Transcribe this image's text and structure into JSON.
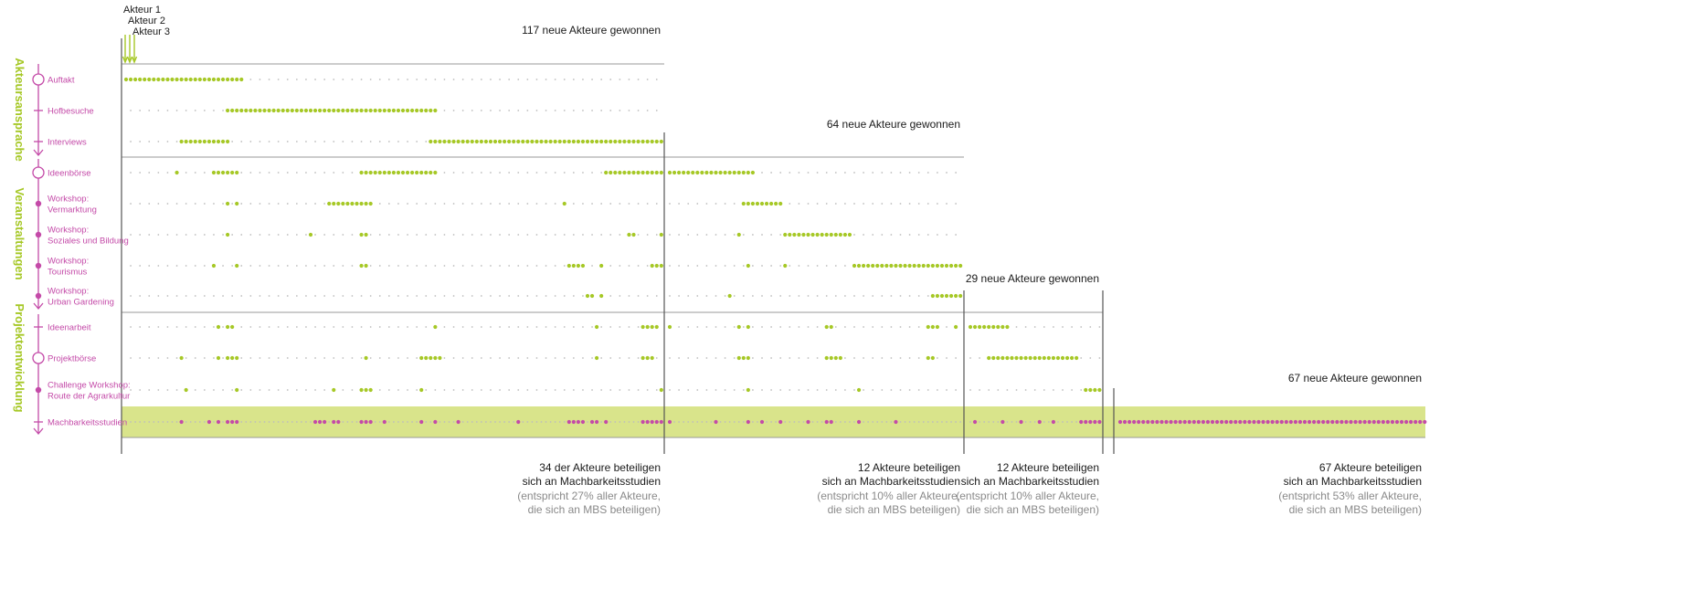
{
  "colors": {
    "green": "#a6c826",
    "magenta": "#c44aa8",
    "band": "#d9e48b",
    "dot_bg": "#bdbdbd",
    "text": "#1a1a1a",
    "gray_text": "#8a8a8a",
    "rule": "#555555"
  },
  "actor_labels": [
    "Akteur 1",
    "Akteur 2",
    "Akteur 3"
  ],
  "phases": [
    {
      "label": "Akteursansprache"
    },
    {
      "label": "Veranstaltungen"
    },
    {
      "label": "Projektentwicklung"
    }
  ],
  "rows": [
    {
      "id": "auftakt",
      "label": [
        "Auftakt"
      ],
      "marker": "circle"
    },
    {
      "id": "hofbesuche",
      "label": [
        "Hofbesuche"
      ],
      "marker": "tick"
    },
    {
      "id": "interviews",
      "label": [
        "Interviews"
      ],
      "marker": "tick"
    },
    {
      "id": "ideenboerse",
      "label": [
        "Ideenbörse"
      ],
      "marker": "circle"
    },
    {
      "id": "ws-vermarktung",
      "label": [
        "Workshop:",
        "Vermarktung"
      ],
      "marker": "dot"
    },
    {
      "id": "ws-soziales",
      "label": [
        "Workshop:",
        "Soziales und Bildung"
      ],
      "marker": "dot"
    },
    {
      "id": "ws-tourismus",
      "label": [
        "Workshop:",
        "Tourismus"
      ],
      "marker": "dot"
    },
    {
      "id": "ws-urban",
      "label": [
        "Workshop:",
        "Urban Gardening"
      ],
      "marker": "dot"
    },
    {
      "id": "ideenarbeit",
      "label": [
        "Ideenarbeit"
      ],
      "marker": "tick"
    },
    {
      "id": "projektboerse",
      "label": [
        "Projektbörse"
      ],
      "marker": "circle"
    },
    {
      "id": "challenge",
      "label": [
        "Challenge Workshop:",
        "Route der Agrarkultur"
      ],
      "marker": "dot"
    },
    {
      "id": "mbs",
      "label": [
        "Machbarkeitsstudien"
      ],
      "marker": "tick"
    }
  ],
  "chart_data": {
    "type": "scatter",
    "x_unit": "actor number (in order of acquisition)",
    "groups": [
      {
        "header": "117 neue Akteure gewonnen",
        "footer": [
          "34 der Akteure beteiligen",
          "sich an Machbarkeitsstudien"
        ],
        "note": [
          "(entspricht 27% aller Akteure,",
          "die sich an MBS beteiligen)"
        ],
        "count": 117,
        "last_row": 2
      },
      {
        "header": "64 neue Akteure gewonnen",
        "footer": [
          "12 Akteure beteiligen",
          "sich an Machbarkeitsstudien"
        ],
        "note": [
          "(entspricht 10% aller Akteure,",
          "die sich an MBS beteiligen)"
        ],
        "count": 64,
        "last_row": 7
      },
      {
        "header": "29 neue Akteure gewonnen",
        "footer": [
          "12 Akteure beteiligen",
          "sich an Machbarkeitsstudien"
        ],
        "note": [
          "(entspricht 10% aller Akteure,",
          "die sich an MBS beteiligen)"
        ],
        "count": 29,
        "last_row": 10
      },
      {
        "header": "67 neue Akteure gewonnen",
        "footer": [
          "67 Akteure beteiligen",
          "sich an Machbarkeitsstudien"
        ],
        "note": [
          "(entspricht 53% aller Akteure,",
          "die sich an MBS beteiligen)"
        ],
        "count": 67,
        "last_row": 11
      }
    ],
    "participation": {
      "auftakt": [
        [
          1,
          26
        ]
      ],
      "hofbesuche": [
        [
          23,
          68
        ]
      ],
      "interviews": [
        [
          13,
          23
        ],
        [
          67,
          117
        ]
      ],
      "ideenboerse": [
        12,
        [
          20,
          25
        ],
        [
          52,
          68
        ],
        [
          105,
          117
        ],
        [
          118,
          136
        ]
      ],
      "ws-vermarktung": [
        23,
        25,
        [
          45,
          54
        ],
        96,
        [
          134,
          142
        ]
      ],
      "ws-soziales": [
        23,
        41,
        52,
        53,
        110,
        111,
        117,
        133,
        [
          143,
          157
        ]
      ],
      "ws-tourismus": [
        20,
        25,
        52,
        53,
        [
          97,
          100
        ],
        104,
        [
          115,
          117
        ],
        135,
        143,
        [
          158,
          182
        ]
      ],
      "ws-urban": [
        101,
        102,
        104,
        131,
        [
          175,
          181
        ]
      ],
      "ideenarbeit": [
        21,
        23,
        24,
        68,
        103,
        [
          113,
          116
        ],
        118,
        133,
        135,
        152,
        153,
        174,
        175,
        176,
        180,
        [
          182,
          190
        ]
      ],
      "projektboerse": [
        13,
        21,
        23,
        24,
        25,
        53,
        [
          65,
          69
        ],
        103,
        113,
        114,
        115,
        133,
        134,
        135,
        [
          152,
          155
        ],
        174,
        175,
        [
          186,
          205
        ]
      ],
      "challenge": [
        14,
        25,
        46,
        52,
        53,
        54,
        65,
        117,
        135,
        159,
        [
          207,
          211
        ]
      ],
      "mbs": [
        13,
        19,
        21,
        23,
        24,
        25,
        42,
        43,
        44,
        46,
        47,
        52,
        53,
        54,
        57,
        65,
        68,
        73,
        86,
        97,
        98,
        99,
        100,
        102,
        103,
        105,
        113,
        114,
        115,
        116,
        117,
        118,
        128,
        135,
        138,
        142,
        148,
        152,
        153,
        159,
        167,
        183,
        189,
        193,
        197,
        200,
        [
          206,
          211
        ],
        [
          212,
          278
        ]
      ]
    }
  }
}
